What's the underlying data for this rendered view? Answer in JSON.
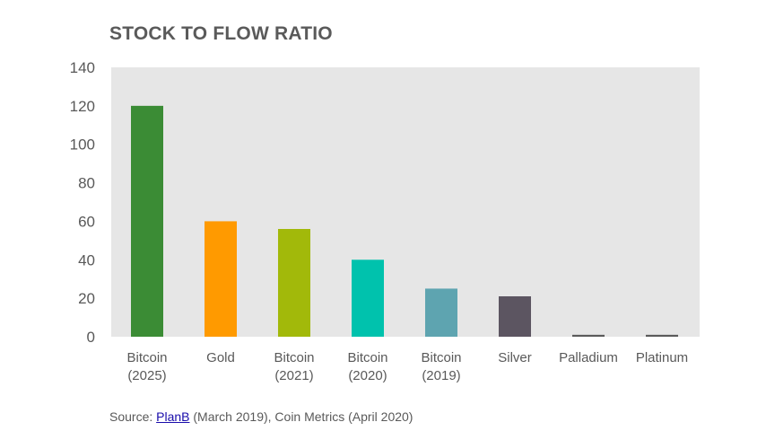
{
  "chart_data": {
    "type": "bar",
    "title": "STOCK TO FLOW RATIO",
    "categories": [
      [
        "Bitcoin",
        "(2025)"
      ],
      [
        "Gold"
      ],
      [
        "Bitcoin",
        "(2021)"
      ],
      [
        "Bitcoin",
        "(2020)"
      ],
      [
        "Bitcoin",
        "(2019)"
      ],
      [
        "Silver"
      ],
      [
        "Palladium"
      ],
      [
        "Platinum"
      ]
    ],
    "values": [
      120,
      60,
      56,
      40,
      25,
      21,
      1,
      1
    ],
    "colors": [
      "#3b8c35",
      "#ff9a00",
      "#a2b90a",
      "#00c2ad",
      "#5ea4b0",
      "#5c5561",
      "#5a5a5a",
      "#5a5a5a"
    ],
    "ylim": [
      0,
      140
    ],
    "yticks": [
      0,
      20,
      40,
      60,
      80,
      100,
      120,
      140
    ],
    "grid": false,
    "plot_background": "#e6e6e6"
  },
  "source": {
    "prefix": "Source: ",
    "link_text": "PlanB",
    "suffix": " (March 2019), Coin Metrics (April 2020)"
  }
}
